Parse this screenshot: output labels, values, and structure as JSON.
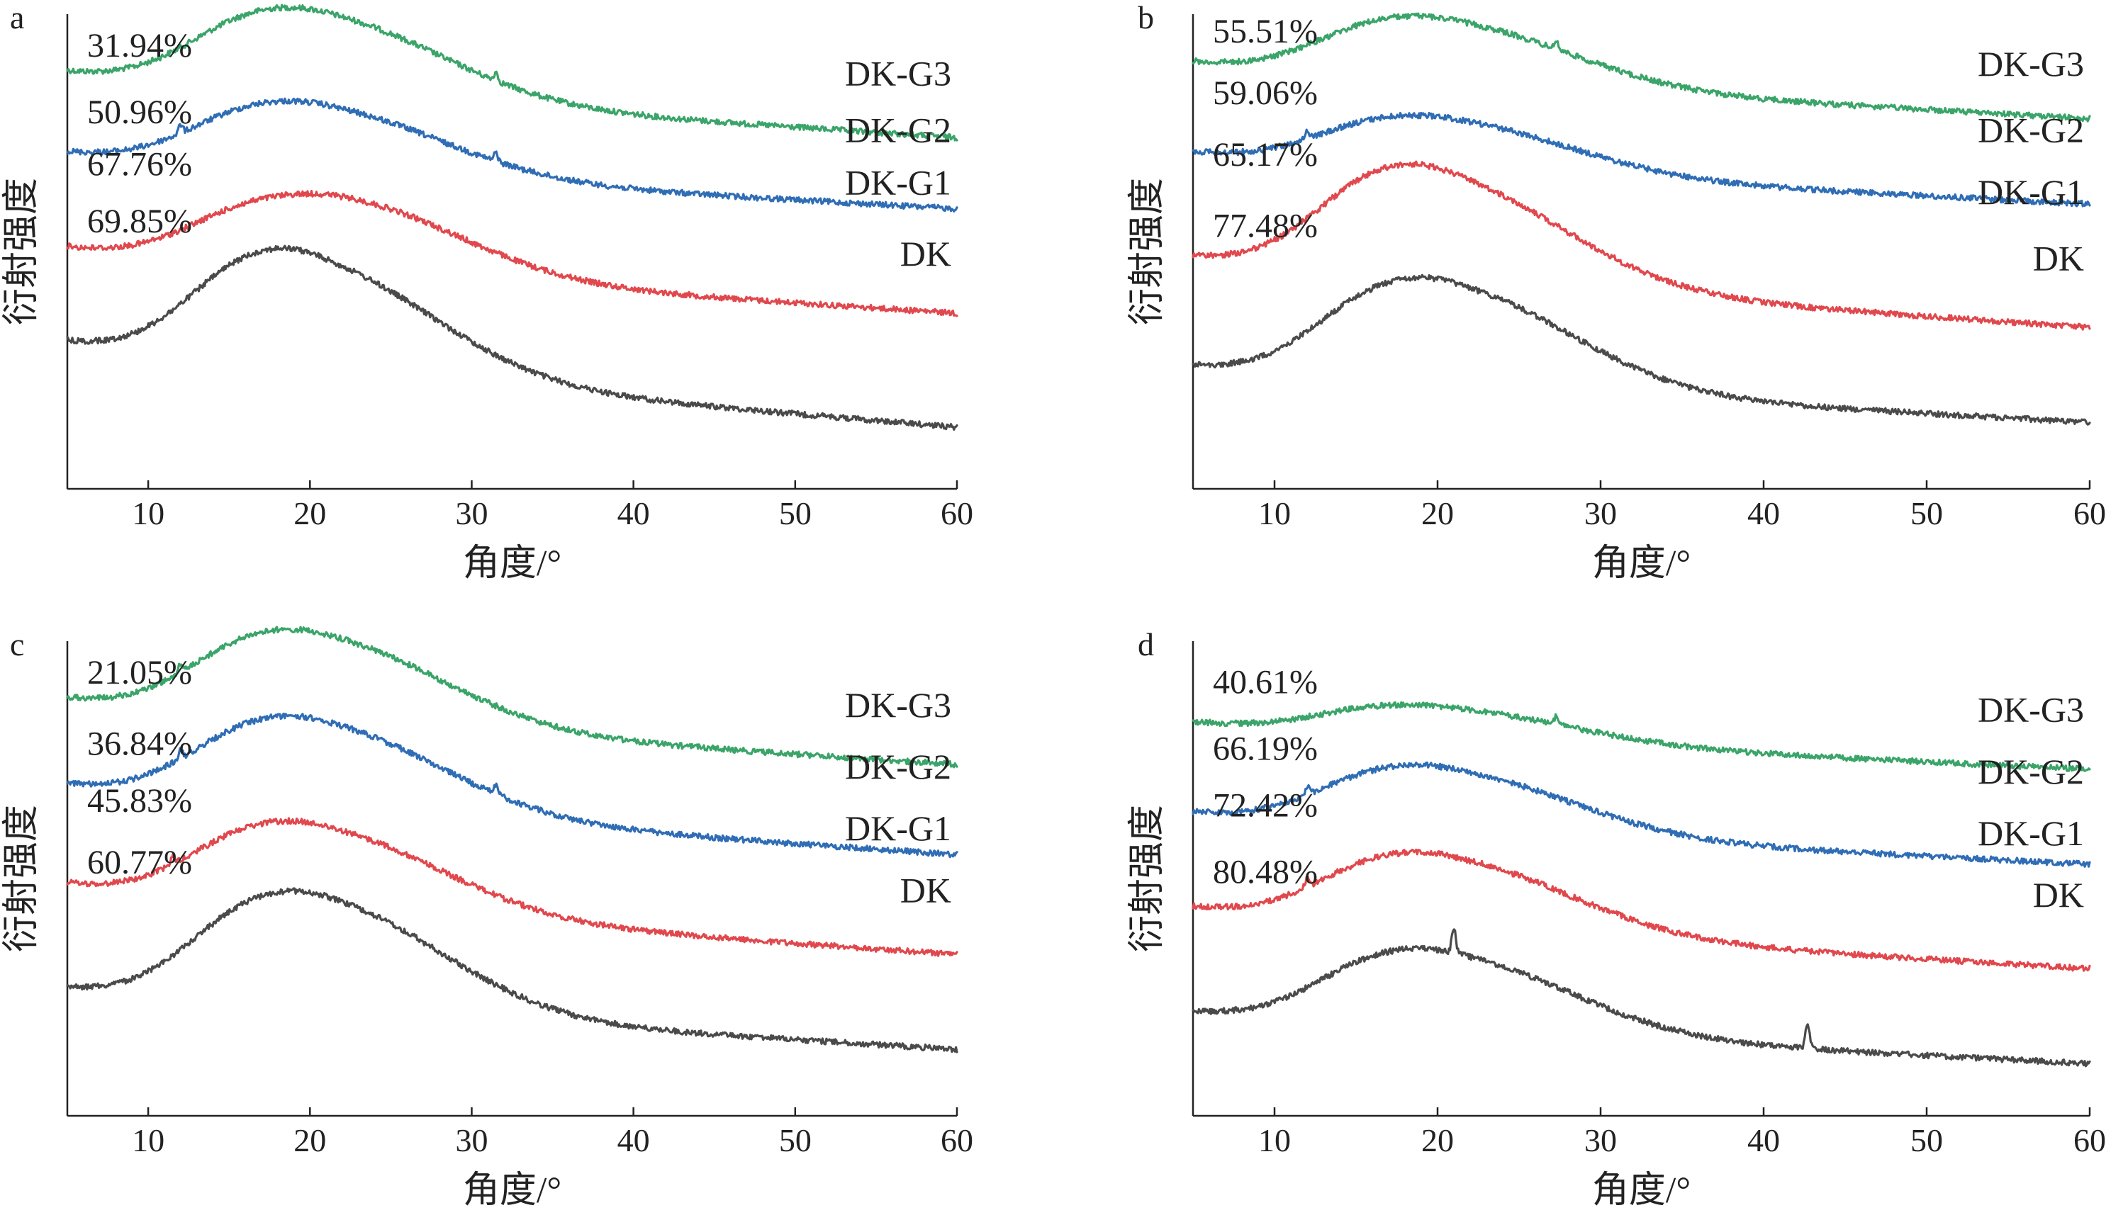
{
  "figure": {
    "colors": {
      "DK": "#4a4a4a",
      "DK-G1": "#e0484d",
      "DK-G2": "#2f6db5",
      "DK-G3": "#3aa469"
    },
    "xlabel": "角度/°",
    "ylabel": "衍射强度"
  },
  "chart_data": [
    {
      "panel": "a",
      "type": "line",
      "xlabel": "角度/°",
      "ylabel": "衍射强度",
      "xlim": [
        5,
        60
      ],
      "xticks": [
        10,
        20,
        30,
        40,
        50,
        60
      ],
      "yticks": [],
      "grid": false,
      "legend": "series names at right end of each trace",
      "series": [
        {
          "name": "DK-G3",
          "crystallinity_label": "31.94%",
          "halo_center": 21,
          "peaks": [
            31.5
          ]
        },
        {
          "name": "DK-G2",
          "crystallinity_label": "50.96%",
          "halo_center": 21,
          "peaks": [
            12,
            31.5
          ]
        },
        {
          "name": "DK-G1",
          "crystallinity_label": "67.76%",
          "halo_center": 22,
          "peaks": []
        },
        {
          "name": "DK",
          "crystallinity_label": "69.85%",
          "halo_center": 20.5,
          "peaks": []
        }
      ]
    },
    {
      "panel": "b",
      "type": "line",
      "xlabel": "角度/°",
      "ylabel": "衍射强度",
      "xlim": [
        5,
        60
      ],
      "xticks": [
        10,
        20,
        30,
        40,
        50,
        60
      ],
      "yticks": [],
      "grid": false,
      "legend": "series names at right end of each trace",
      "series": [
        {
          "name": "DK-G3",
          "crystallinity_label": "55.51%",
          "halo_center": 21,
          "peaks": [
            27.3
          ]
        },
        {
          "name": "DK-G2",
          "crystallinity_label": "59.06%",
          "halo_center": 21,
          "peaks": [
            12
          ]
        },
        {
          "name": "DK-G1",
          "crystallinity_label": "65.17%",
          "halo_center": 20.5,
          "peaks": []
        },
        {
          "name": "DK",
          "crystallinity_label": "77.48%",
          "halo_center": 21,
          "peaks": []
        }
      ]
    },
    {
      "panel": "c",
      "type": "line",
      "xlabel": "角度/°",
      "ylabel": "衍射强度",
      "xlim": [
        5,
        60
      ],
      "xticks": [
        10,
        20,
        30,
        40,
        50,
        60
      ],
      "yticks": [],
      "grid": false,
      "legend": "series names at right end of each trace",
      "series": [
        {
          "name": "DK-G3",
          "crystallinity_label": "21.05%",
          "halo_center": 21,
          "peaks": [
            12
          ]
        },
        {
          "name": "DK-G2",
          "crystallinity_label": "36.84%",
          "halo_center": 21,
          "peaks": [
            12,
            31.5
          ]
        },
        {
          "name": "DK-G1",
          "crystallinity_label": "45.83%",
          "halo_center": 21,
          "peaks": [
            11.5
          ]
        },
        {
          "name": "DK",
          "crystallinity_label": "60.77%",
          "halo_center": 21,
          "peaks": []
        }
      ]
    },
    {
      "panel": "d",
      "type": "line",
      "xlabel": "角度/°",
      "ylabel": "衍射强度",
      "xlim": [
        5,
        60
      ],
      "xticks": [
        10,
        20,
        30,
        40,
        50,
        60
      ],
      "yticks": [],
      "grid": false,
      "legend": "series names at right end of each trace",
      "series": [
        {
          "name": "DK-G3",
          "crystallinity_label": "40.61%",
          "halo_center": 21,
          "peaks": [
            27.3
          ]
        },
        {
          "name": "DK-G2",
          "crystallinity_label": "66.19%",
          "halo_center": 21,
          "peaks": [
            12
          ]
        },
        {
          "name": "DK-G1",
          "crystallinity_label": "72.42%",
          "halo_center": 21,
          "peaks": [
            12
          ]
        },
        {
          "name": "DK",
          "crystallinity_label": "80.48%",
          "halo_center": 21,
          "peaks": [
            21,
            42.7
          ]
        }
      ]
    }
  ]
}
